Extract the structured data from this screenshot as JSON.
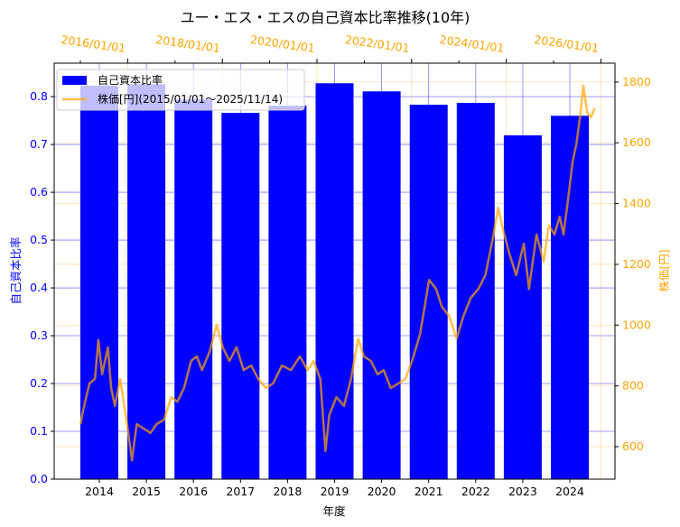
{
  "chart_data": {
    "type": "bar+line",
    "title": "ユー・エス・エスの自己資本比率推移(10年)",
    "xlabel": "年度",
    "ylabel": "自己資本比率",
    "ylabel_right": "株価[円]",
    "ylim": [
      0,
      0.87
    ],
    "ylim_right": [
      493,
      1862
    ],
    "yticks": [
      "0.0",
      "0.1",
      "0.2",
      "0.3",
      "0.4",
      "0.5",
      "0.6",
      "0.7",
      "0.8"
    ],
    "yticks_right": [
      "600",
      "800",
      "1000",
      "1200",
      "1400",
      "1600",
      "1800"
    ],
    "top_xticks": [
      "2016/01/01",
      "2018/01/01",
      "2020/01/01",
      "2022/01/01",
      "2024/01/01",
      "2026/01/01"
    ],
    "categories": [
      "2014",
      "2015",
      "2016",
      "2017",
      "2018",
      "2019",
      "2020",
      "2021",
      "2022",
      "2023",
      "2024"
    ],
    "series": [
      {
        "name": "自己資本比率",
        "type": "bar",
        "color": "#0000ff",
        "values": [
          0.823,
          0.826,
          0.794,
          0.766,
          0.781,
          0.828,
          0.811,
          0.783,
          0.787,
          0.719,
          0.76
        ]
      },
      {
        "name": "株価[円](2015/01/01～2025/11/14)",
        "type": "line",
        "color": "#ffa500",
        "x": [
          2015.0,
          2015.08,
          2015.19,
          2015.31,
          2015.38,
          2015.46,
          2015.58,
          2015.65,
          2015.73,
          2015.84,
          2015.96,
          2016.04,
          2016.09,
          2016.19,
          2016.34,
          2016.48,
          2016.61,
          2016.77,
          2016.92,
          2017.05,
          2017.19,
          2017.34,
          2017.46,
          2017.57,
          2017.73,
          2017.88,
          2018.01,
          2018.15,
          2018.3,
          2018.45,
          2018.61,
          2018.76,
          2018.92,
          2019.07,
          2019.26,
          2019.45,
          2019.64,
          2019.8,
          2019.93,
          2020.07,
          2020.18,
          2020.26,
          2020.41,
          2020.57,
          2020.72,
          2020.87,
          2020.99,
          2021.14,
          2021.28,
          2021.41,
          2021.56,
          2021.72,
          2021.87,
          2022.04,
          2022.18,
          2022.37,
          2022.52,
          2022.64,
          2022.79,
          2022.95,
          2023.1,
          2023.25,
          2023.41,
          2023.56,
          2023.73,
          2023.83,
          2023.91,
          2024.06,
          2024.21,
          2024.37,
          2024.48,
          2024.64,
          2024.79,
          2024.9,
          2025.02,
          2025.13,
          2025.21,
          2025.31,
          2025.4,
          2025.48,
          2025.56,
          2025.63,
          2025.71,
          2025.79,
          2025.87
        ],
        "values": [
          674,
          734,
          808,
          823,
          951,
          838,
          927,
          793,
          734,
          823,
          704,
          615,
          555,
          674,
          659,
          645,
          674,
          689,
          763,
          748,
          793,
          882,
          897,
          852,
          912,
          1001,
          927,
          882,
          927,
          852,
          867,
          823,
          793,
          808,
          867,
          852,
          897,
          852,
          882,
          823,
          585,
          704,
          763,
          734,
          823,
          956,
          897,
          882,
          838,
          852,
          793,
          808,
          823,
          897,
          971,
          1149,
          1119,
          1060,
          1031,
          956,
          1031,
          1090,
          1119,
          1164,
          1298,
          1387,
          1328,
          1239,
          1164,
          1268,
          1119,
          1298,
          1209,
          1328,
          1298,
          1357,
          1298,
          1417,
          1536,
          1595,
          1684,
          1788,
          1699,
          1684,
          1714
        ]
      }
    ],
    "legend": {
      "placement": "top-left",
      "entries": [
        "自己資本比率",
        "株価[円](2015/01/01～2025/11/14)"
      ]
    },
    "grid": true
  }
}
